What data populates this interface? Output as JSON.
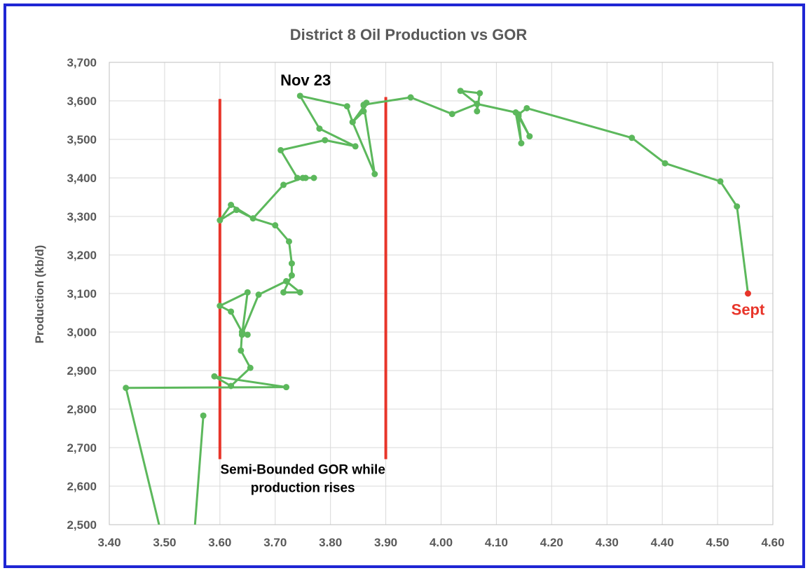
{
  "chart_data": {
    "type": "scatter",
    "title": "District 8 Oil Production vs GOR",
    "xlabel": "",
    "ylabel": "Production (kb/d)",
    "xlim": [
      3.4,
      4.6
    ],
    "ylim": [
      2500,
      3700
    ],
    "x_ticks": [
      "3.40",
      "3.50",
      "3.60",
      "3.70",
      "3.80",
      "3.90",
      "4.00",
      "4.10",
      "4.20",
      "4.30",
      "4.40",
      "4.50",
      "4.60"
    ],
    "y_ticks": [
      "2,500",
      "2,600",
      "2,700",
      "2,800",
      "2,900",
      "3,000",
      "3,100",
      "3,200",
      "3,300",
      "3,400",
      "3,500",
      "3,600",
      "3,700"
    ],
    "grid": true,
    "series": [
      {
        "color": "#5cb85c",
        "points": [
          [
            3.49,
            2500
          ],
          [
            3.43,
            2855
          ],
          [
            3.72,
            2857
          ],
          [
            3.59,
            2885
          ],
          [
            3.62,
            2860
          ],
          [
            3.655,
            2907
          ],
          [
            3.638,
            2952
          ],
          [
            3.64,
            3000
          ],
          [
            3.65,
            2993
          ],
          [
            3.64,
            3000
          ],
          [
            3.62,
            3053
          ],
          [
            3.6,
            3068
          ],
          [
            3.65,
            3103
          ],
          [
            3.64,
            2993
          ],
          [
            3.67,
            3097
          ],
          [
            3.72,
            3132
          ],
          [
            3.745,
            3103
          ],
          [
            3.715,
            3103
          ],
          [
            3.73,
            3147
          ],
          [
            3.73,
            3178
          ],
          [
            3.725,
            3235
          ],
          [
            3.7,
            3277
          ],
          [
            3.66,
            3295
          ],
          [
            3.62,
            3330
          ],
          [
            3.6,
            3290
          ],
          [
            3.63,
            3317
          ],
          [
            3.66,
            3295
          ],
          [
            3.715,
            3382
          ],
          [
            3.75,
            3400
          ],
          [
            3.77,
            3400
          ],
          [
            3.755,
            3400
          ],
          [
            3.74,
            3400
          ],
          [
            3.71,
            3472
          ],
          [
            3.79,
            3498
          ],
          [
            3.845,
            3482
          ],
          [
            3.78,
            3528
          ],
          [
            3.745,
            3613
          ],
          [
            3.83,
            3586
          ],
          [
            3.84,
            3545
          ],
          [
            3.86,
            3573
          ],
          [
            3.86,
            3588
          ],
          [
            3.865,
            3595
          ],
          [
            3.84,
            3545
          ],
          [
            3.88,
            3410
          ],
          [
            3.86,
            3590
          ],
          [
            3.945,
            3609
          ],
          [
            4.02,
            3566
          ],
          [
            4.065,
            3592
          ],
          [
            4.035,
            3626
          ],
          [
            4.07,
            3620
          ],
          [
            4.065,
            3573
          ],
          [
            4.065,
            3592
          ],
          [
            4.135,
            3570
          ],
          [
            4.145,
            3490
          ],
          [
            4.14,
            3560
          ],
          [
            4.16,
            3508
          ],
          [
            4.14,
            3565
          ],
          [
            4.155,
            3581
          ],
          [
            4.345,
            3504
          ],
          [
            4.405,
            3438
          ],
          [
            4.505,
            3391
          ],
          [
            4.535,
            3326
          ],
          [
            4.555,
            3100
          ]
        ]
      },
      {
        "color": "#5cb85c",
        "points": [
          [
            3.555,
            2500
          ],
          [
            3.57,
            2783
          ]
        ]
      }
    ],
    "last_point_color": "#e8352a",
    "reference_lines": [
      {
        "x": 3.6,
        "y_from": 2670,
        "y_to": 3605,
        "color": "#e8352a"
      },
      {
        "x": 3.9,
        "y_from": 2670,
        "y_to": 3610,
        "color": "#e8352a"
      }
    ],
    "annotations": [
      {
        "text": "Nov 23",
        "x": 3.755,
        "y": 3640,
        "color": "#000000"
      },
      {
        "text": "Sept",
        "x": 4.555,
        "y": 3045,
        "color": "#e8352a"
      },
      {
        "text": "Semi-Bounded GOR while",
        "x": 3.75,
        "y": 2632,
        "color": "#000000"
      },
      {
        "text": "production rises",
        "x": 3.75,
        "y": 2585,
        "color": "#000000"
      }
    ]
  },
  "colors": {
    "frame": "#1f26d4",
    "line": "#5cb85c",
    "reference": "#e8352a",
    "grid": "#d9d9d9",
    "text": "#595959"
  }
}
